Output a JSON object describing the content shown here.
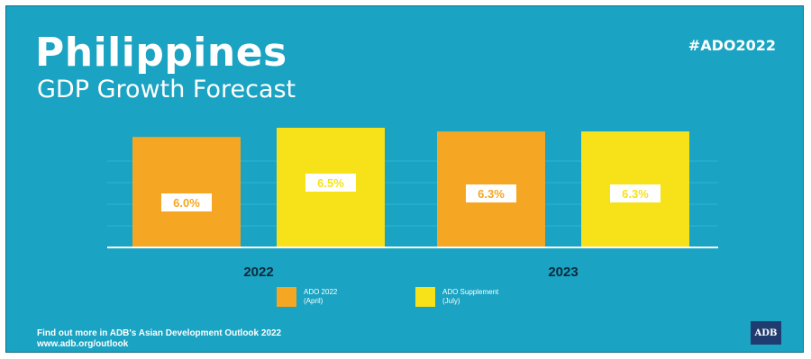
{
  "header": {
    "title": "Philippines",
    "subtitle": "GDP Growth Forecast",
    "hashtag": "#ADO2022"
  },
  "chart_data": {
    "type": "bar",
    "categories": [
      "2022",
      "2023"
    ],
    "series": [
      {
        "name": "ADO 2022 (April)",
        "values": [
          6.0,
          6.3
        ],
        "value_labels": [
          "6.0%",
          "6.3%"
        ],
        "color": "#f5a623"
      },
      {
        "name": "ADO Supplement (July)",
        "values": [
          6.5,
          6.3
        ],
        "value_labels": [
          "6.5%",
          "6.3%"
        ],
        "color": "#f7e21a"
      }
    ],
    "ylim": [
      0,
      7
    ],
    "grid": true,
    "legend": "bottom-center"
  },
  "legend": {
    "items": [
      {
        "line1": "ADO 2022",
        "line2": "(April)"
      },
      {
        "line1": "ADO Supplement",
        "line2": "(July)"
      }
    ]
  },
  "footer": {
    "text": "Find out more in ADB's Asian Development Outlook 2022",
    "url": "www.adb.org/outlook"
  },
  "logo": {
    "text": "ADB"
  },
  "colors": {
    "background": "#1aa3c2",
    "april": "#f5a623",
    "july": "#f7e21a"
  }
}
